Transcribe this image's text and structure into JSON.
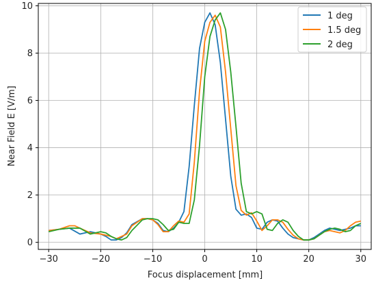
{
  "chart_data": {
    "type": "line",
    "title": "",
    "xlabel": "Focus displacement [mm]",
    "ylabel": "Near Field E [V/m]",
    "xlim": [
      -32,
      32
    ],
    "ylim": [
      -0.3,
      10.1
    ],
    "xticks": [
      -30,
      -20,
      -10,
      0,
      10,
      20,
      30
    ],
    "yticks": [
      0,
      2,
      4,
      6,
      8,
      10
    ],
    "grid": true,
    "legend_position": "top-right",
    "series": [
      {
        "name": "1 deg",
        "color": "#1f77b4",
        "x": [
          -30,
          -28,
          -26,
          -24,
          -22,
          -20,
          -19,
          -18,
          -17,
          -16,
          -15,
          -14,
          -12,
          -11,
          -10,
          -9,
          -8,
          -7,
          -6,
          -5,
          -4,
          -3,
          -2,
          -1,
          0,
          1,
          2,
          3,
          4,
          5,
          6,
          7,
          8,
          9,
          10,
          11,
          12,
          13,
          14,
          15,
          16,
          17,
          18,
          19,
          20,
          21,
          22,
          23,
          24,
          25,
          26,
          27,
          28,
          29,
          30
        ],
        "values": [
          0.5,
          0.55,
          0.6,
          0.35,
          0.45,
          0.35,
          0.25,
          0.1,
          0.1,
          0.2,
          0.4,
          0.75,
          1.0,
          1.0,
          0.95,
          0.8,
          0.5,
          0.45,
          0.6,
          0.85,
          1.3,
          3.2,
          5.8,
          8.2,
          9.3,
          9.7,
          9.2,
          7.6,
          5.2,
          2.8,
          1.4,
          1.15,
          1.2,
          1.05,
          0.6,
          0.55,
          0.85,
          0.95,
          0.9,
          0.6,
          0.35,
          0.2,
          0.15,
          0.1,
          0.1,
          0.2,
          0.35,
          0.5,
          0.6,
          0.55,
          0.5,
          0.55,
          0.6,
          0.7,
          0.7
        ]
      },
      {
        "name": "1.5 deg",
        "color": "#ff7f0e",
        "x": [
          -30,
          -28,
          -26,
          -25,
          -24,
          -22,
          -20,
          -18,
          -17,
          -16,
          -15,
          -14,
          -12,
          -11,
          -10,
          -9,
          -8,
          -7,
          -6,
          -5,
          -4,
          -3,
          -2,
          -1,
          0,
          1,
          2,
          3,
          4,
          5,
          6,
          7,
          8,
          9,
          10,
          11,
          12,
          13,
          14,
          15,
          16,
          17,
          18,
          19,
          20,
          21,
          22,
          23,
          24,
          25,
          26,
          27,
          28,
          29,
          30
        ],
        "values": [
          0.5,
          0.55,
          0.7,
          0.7,
          0.6,
          0.4,
          0.35,
          0.25,
          0.15,
          0.25,
          0.35,
          0.7,
          1.0,
          1.0,
          0.95,
          0.75,
          0.45,
          0.45,
          0.7,
          0.9,
          0.85,
          1.2,
          3.4,
          6.4,
          8.5,
          9.3,
          9.6,
          9.1,
          7.2,
          4.8,
          2.4,
          1.35,
          1.15,
          1.25,
          0.9,
          0.5,
          0.7,
          0.95,
          0.95,
          0.85,
          0.55,
          0.3,
          0.15,
          0.1,
          0.1,
          0.15,
          0.3,
          0.45,
          0.5,
          0.45,
          0.4,
          0.5,
          0.7,
          0.85,
          0.9
        ]
      },
      {
        "name": "2 deg",
        "color": "#2ca02c",
        "x": [
          -30,
          -28,
          -26,
          -24,
          -22,
          -20,
          -19,
          -18,
          -17,
          -16,
          -15,
          -14,
          -12,
          -11,
          -10,
          -9,
          -8,
          -7,
          -6,
          -5,
          -4,
          -3,
          -2,
          -1,
          0,
          1,
          2,
          3,
          4,
          5,
          6,
          7,
          8,
          9,
          10,
          11,
          12,
          13,
          14,
          15,
          16,
          17,
          18,
          19,
          20,
          21,
          22,
          23,
          24,
          25,
          26,
          27,
          28,
          29,
          30
        ],
        "values": [
          0.45,
          0.55,
          0.6,
          0.6,
          0.35,
          0.45,
          0.4,
          0.25,
          0.15,
          0.1,
          0.2,
          0.5,
          0.95,
          1.0,
          1.0,
          0.95,
          0.75,
          0.5,
          0.55,
          0.85,
          0.8,
          0.8,
          1.8,
          4.1,
          7.0,
          8.7,
          9.4,
          9.7,
          9.0,
          7.2,
          4.9,
          2.5,
          1.3,
          1.2,
          1.3,
          1.2,
          0.55,
          0.5,
          0.8,
          0.95,
          0.85,
          0.5,
          0.25,
          0.1,
          0.1,
          0.15,
          0.3,
          0.45,
          0.55,
          0.6,
          0.55,
          0.45,
          0.5,
          0.7,
          0.8
        ]
      }
    ]
  }
}
